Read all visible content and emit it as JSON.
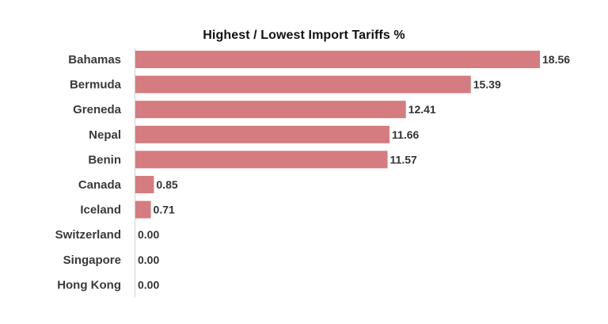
{
  "chart_data": {
    "type": "bar",
    "orientation": "horizontal",
    "title": "Highest / Lowest Import Tariffs %",
    "xlabel": "",
    "ylabel": "",
    "categories": [
      "Bahamas",
      "Bermuda",
      "Greneda",
      "Nepal",
      "Benin",
      "Canada",
      "Iceland",
      "Switzerland",
      "Singapore",
      "Hong Kong"
    ],
    "values": [
      18.56,
      15.39,
      12.41,
      11.66,
      11.57,
      0.85,
      0.71,
      0.0,
      0.0,
      0.0
    ],
    "value_labels": [
      "18.56",
      "15.39",
      "12.41",
      "11.66",
      "11.57",
      "0.85",
      "0.71",
      "0.00",
      "0.00",
      "0.00"
    ],
    "xlim": [
      0,
      18.56
    ],
    "grid": false,
    "legend": "none",
    "bar_color": "#d57c80"
  }
}
